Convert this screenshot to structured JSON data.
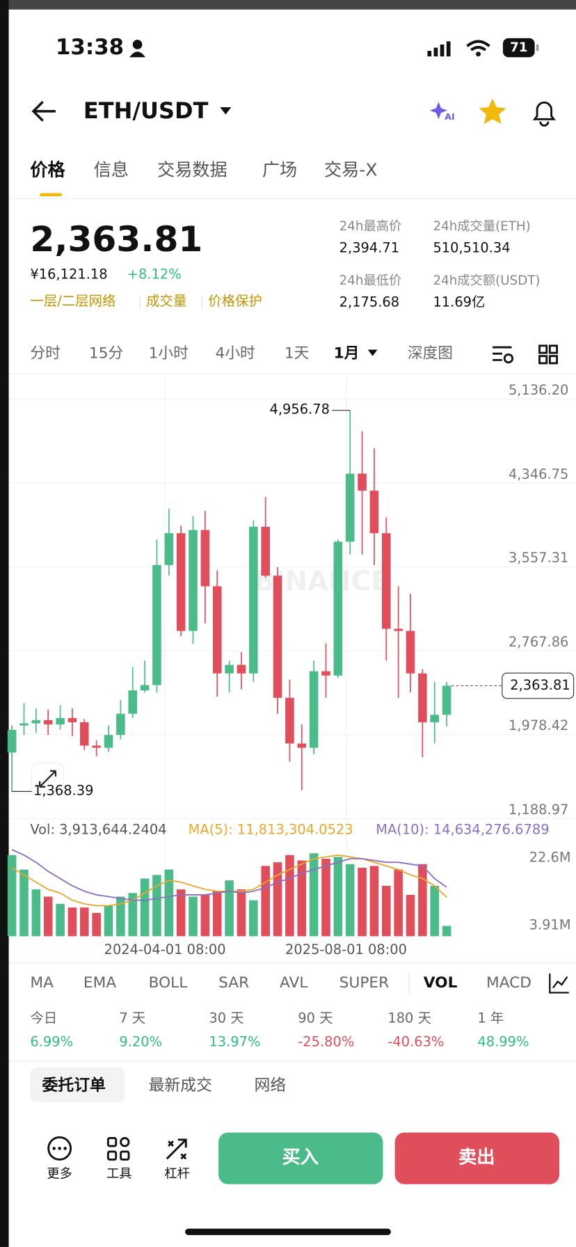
{
  "status_bar": {
    "time": "13:38",
    "battery": "71"
  },
  "header": {
    "pair": "ETH/USDT",
    "ai_badge": "AI"
  },
  "tabs": [
    "价格",
    "信息",
    "交易数据",
    "广场",
    "交易-X"
  ],
  "ticker": {
    "price": "2,363.81",
    "cny": "¥16,121.18",
    "change": "+8.12%",
    "links": [
      "一层/二层网络",
      "成交量",
      "价格保护"
    ],
    "stats": [
      {
        "label": "24h最高价",
        "value": "2,394.71"
      },
      {
        "label": "24h成交量(ETH)",
        "value": "510,510.34"
      },
      {
        "label": "24h最低价",
        "value": "2,175.68"
      },
      {
        "label": "24h成交额(USDT)",
        "value": "11.69亿"
      }
    ]
  },
  "intervals": [
    "分时",
    "15分",
    "1小时",
    "4小时",
    "1天",
    "1月",
    "深度图"
  ],
  "chart_data": {
    "type": "candlestick",
    "watermark": "BINANCE",
    "grid": true,
    "up_color": "#4cbb8a",
    "down_color": "#e04e5b",
    "categories": [
      null,
      null,
      null,
      null,
      null,
      null,
      null,
      null,
      null,
      null,
      null,
      null,
      null,
      "2024-04-01 08:00",
      null,
      null,
      null,
      null,
      null,
      null,
      null,
      null,
      null,
      null,
      null,
      null,
      null,
      null,
      "2025-08-01 08:00",
      null,
      null,
      null,
      null,
      null,
      null,
      null,
      null
    ],
    "open": [
      1735,
      1990,
      2010,
      2040,
      2000,
      2060,
      2020,
      1800,
      1780,
      1900,
      2100,
      2320,
      2370,
      3500,
      3800,
      2880,
      3830,
      3300,
      2480,
      2560,
      2480,
      3860,
      3400,
      2250,
      1820,
      1780,
      2500,
      2460,
      3720,
      4360,
      4200,
      3800,
      2900,
      2880,
      2480,
      2020,
      2090
    ],
    "close": [
      1948,
      2010,
      2040,
      2000,
      2060,
      2020,
      1800,
      1780,
      1900,
      2100,
      2320,
      2370,
      3500,
      3800,
      2880,
      3830,
      3300,
      2480,
      2560,
      2480,
      3860,
      3400,
      2250,
      1820,
      1780,
      2500,
      2460,
      3720,
      4360,
      4200,
      3800,
      2900,
      2880,
      2480,
      2020,
      2090,
      2363.81
    ],
    "high": [
      1990,
      2200,
      2150,
      2140,
      2180,
      2150,
      2050,
      1850,
      1990,
      2230,
      2540,
      2600,
      3740,
      4030,
      3870,
      3960,
      4010,
      3450,
      2600,
      2680,
      3920,
      4140,
      3480,
      2420,
      2000,
      2600,
      2760,
      3740,
      4956.78,
      4760,
      4600,
      3950,
      3300,
      3230,
      2520,
      2400,
      2400
    ],
    "low": [
      1368.39,
      1900,
      1920,
      1900,
      1950,
      1890,
      1760,
      1700,
      1740,
      1860,
      2060,
      2300,
      2300,
      3400,
      2830,
      2760,
      2950,
      2260,
      2300,
      2330,
      2400,
      3380,
      2100,
      1650,
      1380,
      1720,
      2250,
      2440,
      3600,
      3600,
      3500,
      2600,
      2250,
      2300,
      1690,
      1820,
      1980
    ],
    "ylim": [
      1113,
      5303
    ],
    "yticks": [
      {
        "value": 5136.2,
        "label": "5,136.20"
      },
      {
        "value": 4346.75,
        "label": "4,346.75"
      },
      {
        "value": 3557.31,
        "label": "3,557.31"
      },
      {
        "value": 2767.86,
        "label": "2,767.86"
      },
      {
        "value": 1978.42,
        "label": "1,978.42"
      },
      {
        "value": 1188.97,
        "label": "1,188.97"
      }
    ],
    "max_label": "4,956.78",
    "min_label": "1,368.39",
    "last_label": "2,363.81",
    "volume": {
      "header": {
        "vol": "Vol: 3,913,644.2404",
        "ma5": "MA(5): 11,813,304.0523",
        "ma10": "MA(10): 14,634,276.6789"
      },
      "ylim": [
        1.05,
        25.68
      ],
      "yticks": [
        {
          "value": 22.6,
          "label": "22.6M"
        },
        {
          "value": 3.91,
          "label": "3.91M"
        }
      ],
      "values": [
        23.5,
        19.5,
        14,
        12,
        10,
        9,
        9,
        7.5,
        9.5,
        12,
        13,
        17,
        18,
        19.5,
        14,
        12,
        12.5,
        13.5,
        16.5,
        14,
        11,
        20.5,
        21.5,
        23.5,
        22,
        24,
        22.5,
        23,
        21,
        20,
        20.5,
        15,
        19.5,
        12.5,
        21,
        15,
        3.91
      ],
      "ma5_color": "#e8a82a",
      "ma10_color": "#8a6fc4",
      "ma5": [
        20,
        18,
        16,
        14,
        13,
        11,
        10,
        9.5,
        9.5,
        10,
        11,
        13,
        15,
        16.5,
        16,
        15,
        14,
        13.5,
        13.5,
        13.5,
        14,
        16,
        18,
        19.5,
        21,
        22.5,
        23,
        23.5,
        23,
        22.5,
        21.5,
        20.5,
        19.5,
        18,
        17,
        15,
        11.81
      ],
      "ma10": [
        25,
        23.5,
        21.5,
        19,
        17,
        15,
        13.5,
        12.5,
        12,
        11.5,
        11,
        11,
        11.5,
        12,
        12.5,
        12.5,
        12.5,
        13,
        13.5,
        13,
        13.5,
        14.5,
        16,
        17,
        18.5,
        19.5,
        20.5,
        21.5,
        22.5,
        22.5,
        22,
        21.5,
        21.5,
        21,
        20.5,
        17,
        14.63
      ]
    }
  },
  "indicators": [
    "MA",
    "EMA",
    "BOLL",
    "SAR",
    "AVL",
    "SUPER",
    "VOL",
    "MACD"
  ],
  "performance": [
    {
      "label": "今日",
      "value": "6.99%"
    },
    {
      "label": "7 天",
      "value": "9.20%"
    },
    {
      "label": "30 天",
      "value": "13.97%"
    },
    {
      "label": "90 天",
      "value": "-25.80%"
    },
    {
      "label": "180 天",
      "value": "-40.63%"
    },
    {
      "label": "1 年",
      "value": "48.99%"
    }
  ],
  "order_tabs": [
    "委托订单",
    "最新成交",
    "网络"
  ],
  "toolbar": [
    "更多",
    "工具",
    "杠杆"
  ],
  "buttons": {
    "buy": "买入",
    "sell": "卖出"
  }
}
